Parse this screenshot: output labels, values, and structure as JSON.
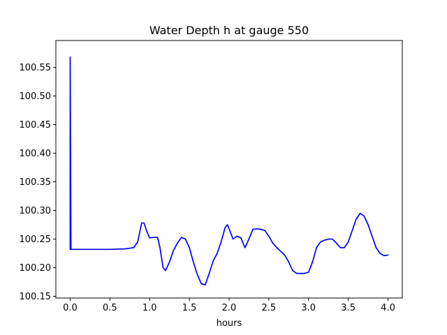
{
  "chart_data": {
    "type": "line",
    "title": "Water Depth h at gauge 550",
    "xlabel": "hours",
    "ylabel": "",
    "xlim": [
      -0.18,
      4.18
    ],
    "ylim": [
      100.147,
      100.597
    ],
    "x_ticks": [
      0.0,
      0.5,
      1.0,
      1.5,
      2.0,
      2.5,
      3.0,
      3.5,
      4.0
    ],
    "x_tick_labels": [
      "0.0",
      "0.5",
      "1.0",
      "1.5",
      "2.0",
      "2.5",
      "3.0",
      "3.5",
      "4.0"
    ],
    "y_ticks": [
      100.15,
      100.2,
      100.25,
      100.3,
      100.35,
      100.4,
      100.45,
      100.5,
      100.55
    ],
    "y_tick_labels": [
      "100.15",
      "100.20",
      "100.25",
      "100.30",
      "100.35",
      "100.40",
      "100.45",
      "100.50",
      "100.55"
    ],
    "grid": false,
    "legend": "none",
    "series": [
      {
        "color": "#0000ff",
        "x": [
          0.0,
          0.0,
          0.01,
          0.1,
          0.3,
          0.5,
          0.7,
          0.8,
          0.85,
          0.88,
          0.9,
          0.93,
          0.96,
          1.0,
          1.05,
          1.1,
          1.13,
          1.17,
          1.2,
          1.25,
          1.3,
          1.35,
          1.4,
          1.45,
          1.5,
          1.55,
          1.6,
          1.65,
          1.7,
          1.75,
          1.8,
          1.85,
          1.9,
          1.95,
          1.98,
          2.0,
          2.05,
          2.1,
          2.15,
          2.2,
          2.25,
          2.3,
          2.35,
          2.4,
          2.45,
          2.5,
          2.55,
          2.6,
          2.7,
          2.75,
          2.8,
          2.85,
          2.95,
          3.0,
          3.05,
          3.1,
          3.15,
          3.2,
          3.25,
          3.3,
          3.35,
          3.4,
          3.45,
          3.5,
          3.55,
          3.6,
          3.65,
          3.7,
          3.75,
          3.8,
          3.85,
          3.9,
          3.95,
          4.0
        ],
        "values": [
          100.232,
          100.568,
          100.232,
          100.232,
          100.232,
          100.232,
          100.233,
          100.235,
          100.245,
          100.265,
          100.278,
          100.278,
          100.265,
          100.252,
          100.253,
          100.253,
          100.235,
          100.2,
          100.195,
          100.21,
          100.23,
          100.243,
          100.253,
          100.25,
          100.235,
          100.21,
          100.188,
          100.172,
          100.17,
          100.19,
          100.212,
          100.225,
          100.245,
          100.27,
          100.275,
          100.268,
          100.25,
          100.255,
          100.252,
          100.235,
          100.25,
          100.267,
          100.268,
          100.267,
          100.265,
          100.255,
          100.243,
          100.235,
          100.222,
          100.21,
          100.195,
          100.19,
          100.19,
          100.192,
          100.21,
          100.235,
          100.245,
          100.248,
          100.25,
          100.25,
          100.243,
          100.235,
          100.235,
          100.245,
          100.265,
          100.285,
          100.295,
          100.29,
          100.275,
          100.255,
          100.235,
          100.225,
          100.221,
          100.222
        ]
      }
    ]
  }
}
